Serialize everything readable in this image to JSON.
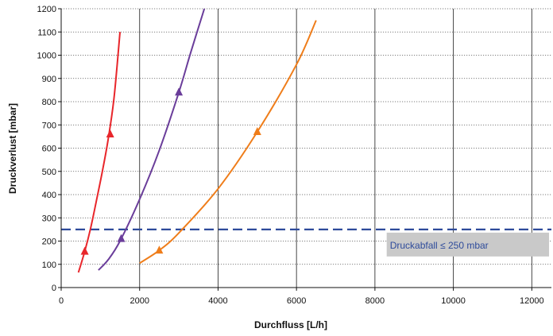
{
  "chart_data": {
    "type": "line",
    "xlabel": "Durchfluss [L/h]",
    "ylabel": "Druckverlust [mbar]",
    "xlim": [
      0,
      12500
    ],
    "ylim": [
      0,
      1200
    ],
    "xticks": [
      0,
      2000,
      4000,
      6000,
      8000,
      10000,
      12000
    ],
    "yticks": [
      0,
      100,
      200,
      300,
      400,
      500,
      600,
      700,
      800,
      900,
      1000,
      1100,
      1200
    ],
    "grid": true,
    "series": [
      {
        "color": "#e8262b",
        "x": [
          440,
          600,
          750,
          900,
          1050,
          1200,
          1350,
          1500
        ],
        "y": [
          65,
          155,
          255,
          375,
          500,
          640,
          820,
          1100
        ],
        "markers": [
          {
            "x": 600,
            "y": 155
          },
          {
            "x": 1250,
            "y": 660
          }
        ]
      },
      {
        "color": "#6a3d9a",
        "x": [
          950,
          1200,
          1500,
          2000,
          2500,
          3000,
          3300,
          3650
        ],
        "y": [
          75,
          120,
          200,
          380,
          590,
          840,
          1010,
          1200
        ],
        "markers": [
          {
            "x": 1530,
            "y": 210
          },
          {
            "x": 3000,
            "y": 840
          }
        ]
      },
      {
        "color": "#ef7d1a",
        "x": [
          2000,
          2500,
          3000,
          4000,
          5000,
          6000,
          6500
        ],
        "y": [
          105,
          160,
          235,
          425,
          670,
          960,
          1150
        ],
        "markers": [
          {
            "x": 2500,
            "y": 160
          },
          {
            "x": 5000,
            "y": 670
          }
        ]
      }
    ],
    "threshold": {
      "y": 250,
      "color": "#2e4b9b",
      "label": "Druckabfall ≤ 250 mbar",
      "box_color": "#c9c9c9"
    }
  }
}
